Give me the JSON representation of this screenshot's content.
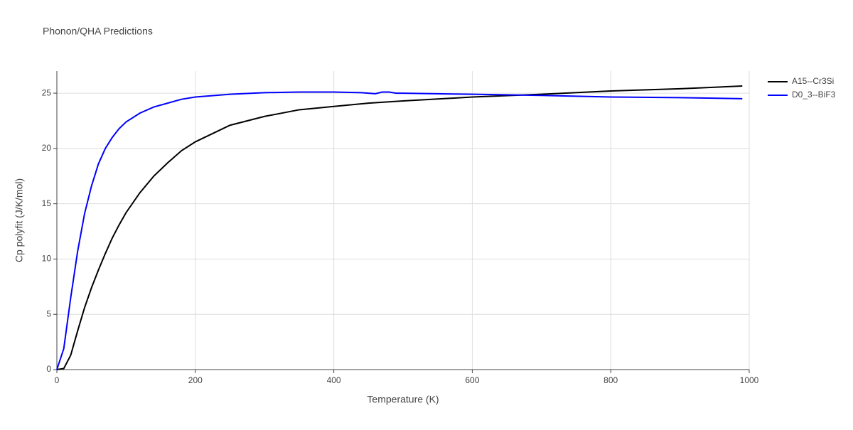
{
  "chart_data": {
    "type": "line",
    "title": "Phonon/QHA Predictions",
    "x_label": "Temperature (K)",
    "y_label": "Cp polyfit (J/K/mol)",
    "xlim": [
      0,
      1000
    ],
    "ylim": [
      0,
      27
    ],
    "xticks": [
      0,
      200,
      400,
      600,
      800,
      1000
    ],
    "yticks": [
      0,
      5,
      10,
      15,
      20,
      25
    ],
    "grid": true,
    "legend": "right",
    "series": [
      {
        "name": "A15--Cr3Si",
        "color": "#000000",
        "x": [
          0,
          10,
          20,
          30,
          40,
          50,
          60,
          70,
          80,
          90,
          100,
          120,
          140,
          160,
          180,
          200,
          250,
          300,
          350,
          400,
          450,
          500,
          600,
          700,
          800,
          900,
          990
        ],
        "values": [
          0,
          0.1,
          1.3,
          3.5,
          5.6,
          7.4,
          9.0,
          10.5,
          11.9,
          13.1,
          14.2,
          16.0,
          17.5,
          18.7,
          19.8,
          20.6,
          22.1,
          22.9,
          23.5,
          23.8,
          24.1,
          24.3,
          24.65,
          24.9,
          25.2,
          25.4,
          25.65
        ]
      },
      {
        "name": "D0_3--BiF3",
        "color": "#0000ff",
        "x": [
          0,
          10,
          20,
          30,
          40,
          50,
          60,
          70,
          80,
          90,
          100,
          120,
          140,
          160,
          180,
          200,
          250,
          300,
          350,
          400,
          440,
          460,
          470,
          480,
          490,
          500,
          600,
          700,
          800,
          900,
          990
        ],
        "values": [
          0,
          1.9,
          6.5,
          10.7,
          14.1,
          16.6,
          18.6,
          20.0,
          21.0,
          21.8,
          22.4,
          23.2,
          23.75,
          24.1,
          24.45,
          24.65,
          24.9,
          25.05,
          25.1,
          25.1,
          25.05,
          24.95,
          25.1,
          25.1,
          25.0,
          25.0,
          24.9,
          24.8,
          24.65,
          24.6,
          24.5
        ]
      }
    ]
  }
}
